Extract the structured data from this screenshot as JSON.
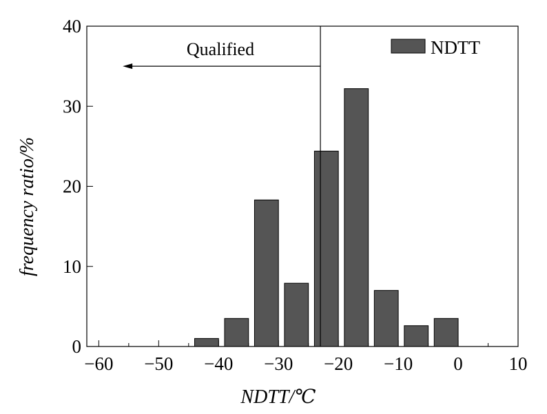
{
  "chart_data": {
    "type": "bar",
    "x": [
      -42,
      -37,
      -32,
      -27,
      -22,
      -17,
      -12,
      -7,
      -2
    ],
    "series": [
      {
        "name": "NDTT",
        "values": [
          1,
          3.5,
          18.3,
          7.9,
          24.4,
          32.2,
          7,
          2.6,
          3.5
        ],
        "color": "#555555"
      }
    ],
    "bar_width": 4,
    "xlabel": "NDTT/℃",
    "ylabel": "frequency ratio/%",
    "xlim": [
      -62,
      10
    ],
    "ylim": [
      0,
      40
    ],
    "xticks": [
      -60,
      -50,
      -40,
      -30,
      -20,
      -10,
      0,
      10
    ],
    "xtick_labels": [
      "−60",
      "−50",
      "−40",
      "−30",
      "−20",
      "−10",
      "0",
      "10"
    ],
    "yticks": [
      0,
      10,
      20,
      30,
      40
    ],
    "ytick_labels": [
      "0",
      "10",
      "20",
      "30",
      "40"
    ],
    "legend": {
      "position": "top-right",
      "label": "NDTT"
    },
    "grid": false,
    "annotations": {
      "threshold_x": -23,
      "arrow_to_x": -56,
      "arrow_y": 35,
      "label": "Qualified"
    }
  }
}
